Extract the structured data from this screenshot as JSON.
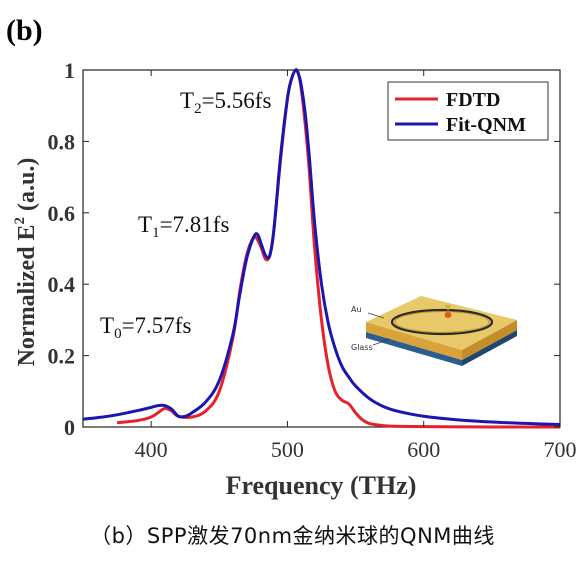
{
  "panel_label": "(b)",
  "caption": "（b）SPP激发70nm金纳米球的QNM曲线",
  "inset": {
    "labels": {
      "au": "Au",
      "glass": "Glass"
    }
  },
  "colors": {
    "fdtd": "#e8202a",
    "qnm": "#1a16b0",
    "inset_gold": "#e8c96a",
    "inset_glass": "#2c5c90"
  },
  "chart_data": {
    "type": "line",
    "xlabel": "Frequency (THz)",
    "ylabel": {
      "main": "Normalized E",
      "sup": "2",
      "unit": " (a.u.)"
    },
    "xlim": [
      350,
      700
    ],
    "ylim": [
      0,
      1
    ],
    "xticks": [
      400,
      500,
      600,
      700
    ],
    "yticks": [
      0,
      0.2,
      0.4,
      0.6,
      0.8,
      1
    ],
    "ytick_labels": [
      "0",
      "0.2",
      "0.4",
      "0.6",
      "0.8",
      "1"
    ],
    "grid": false,
    "legend_position": "top-right",
    "annotations": [
      {
        "letter": "T",
        "sub": "2",
        "value": "=5.56fs"
      },
      {
        "letter": "T",
        "sub": "1",
        "value": "=7.81fs"
      },
      {
        "letter": "T",
        "sub": "0",
        "value": "=7.57fs"
      }
    ],
    "series": [
      {
        "name": "FDTD",
        "color": "#e8202a",
        "x": [
          375,
          390,
          400,
          405,
          410,
          415,
          420,
          430,
          440,
          450,
          460,
          465,
          470,
          475,
          478,
          481,
          484,
          487,
          490,
          495,
          500,
          503,
          506,
          508,
          510,
          513,
          516,
          520,
          525,
          530,
          535,
          540,
          545,
          550,
          555,
          560,
          570,
          580,
          600,
          650,
          700
        ],
        "y": [
          0.012,
          0.018,
          0.028,
          0.04,
          0.052,
          0.045,
          0.03,
          0.028,
          0.045,
          0.1,
          0.25,
          0.38,
          0.48,
          0.53,
          0.525,
          0.5,
          0.47,
          0.48,
          0.55,
          0.75,
          0.92,
          0.975,
          1.0,
          0.99,
          0.95,
          0.85,
          0.72,
          0.5,
          0.3,
          0.17,
          0.1,
          0.075,
          0.065,
          0.04,
          0.02,
          0.01,
          0.004,
          0.002,
          0.001,
          0.0,
          0.0
        ]
      },
      {
        "name": "Fit-QNM",
        "color": "#1a16b0",
        "x": [
          350,
          360,
          370,
          380,
          390,
          400,
          405,
          410,
          415,
          420,
          425,
          430,
          440,
          450,
          460,
          465,
          470,
          475,
          478,
          481,
          484,
          487,
          490,
          495,
          500,
          503,
          506,
          508,
          510,
          513,
          516,
          520,
          525,
          530,
          535,
          540,
          545,
          550,
          560,
          570,
          580,
          600,
          625,
          650,
          675,
          700
        ],
        "y": [
          0.022,
          0.026,
          0.031,
          0.038,
          0.046,
          0.055,
          0.06,
          0.06,
          0.05,
          0.03,
          0.03,
          0.04,
          0.07,
          0.13,
          0.26,
          0.37,
          0.47,
          0.53,
          0.54,
          0.51,
          0.48,
          0.48,
          0.55,
          0.76,
          0.92,
          0.975,
          1.0,
          0.99,
          0.96,
          0.88,
          0.76,
          0.57,
          0.4,
          0.29,
          0.22,
          0.17,
          0.14,
          0.115,
          0.08,
          0.058,
          0.045,
          0.03,
          0.02,
          0.014,
          0.01,
          0.007
        ]
      }
    ]
  }
}
